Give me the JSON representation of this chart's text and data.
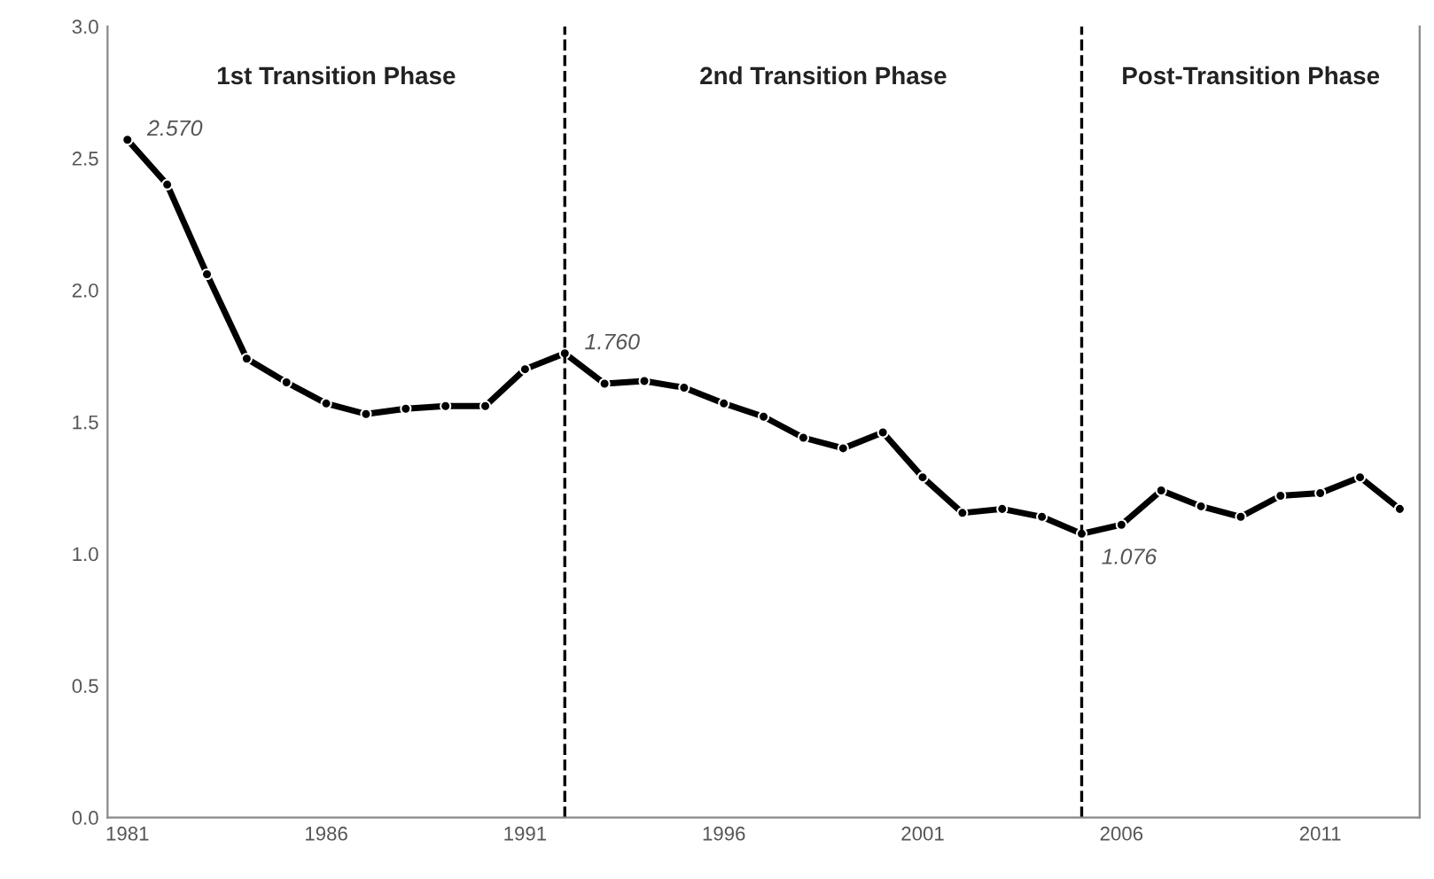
{
  "chart_data": {
    "type": "line",
    "x": [
      1981,
      1982,
      1983,
      1984,
      1985,
      1986,
      1987,
      1988,
      1989,
      1990,
      1991,
      1992,
      1993,
      1994,
      1995,
      1996,
      1997,
      1998,
      1999,
      2000,
      2001,
      2002,
      2003,
      2004,
      2005,
      2006,
      2007,
      2008,
      2009,
      2010,
      2011,
      2012,
      2013
    ],
    "series": [
      {
        "color": "#000000",
        "values": [
          2.57,
          2.4,
          2.06,
          1.74,
          1.65,
          1.57,
          1.53,
          1.55,
          1.56,
          1.56,
          1.7,
          1.76,
          1.645,
          1.655,
          1.63,
          1.57,
          1.52,
          1.44,
          1.4,
          1.46,
          1.29,
          1.155,
          1.17,
          1.14,
          1.076,
          1.11,
          1.24,
          1.18,
          1.14,
          1.22,
          1.23,
          1.29,
          1.17
        ]
      }
    ],
    "xlim": [
      1980.5,
      2013.5
    ],
    "xticks": [
      1981,
      1986,
      1991,
      1996,
      2001,
      2006,
      2011
    ],
    "ylim": [
      0,
      3
    ],
    "yticks": [
      {
        "value": 0,
        "label": "0.0"
      },
      {
        "value": 0.5,
        "label": "0.5"
      },
      {
        "value": 1,
        "label": "1.0"
      },
      {
        "value": 1.5,
        "label": "1.5"
      },
      {
        "value": 2,
        "label": "2.0"
      },
      {
        "value": 2.5,
        "label": "2.5"
      },
      {
        "value": 3,
        "label": "3.0"
      }
    ],
    "ref_lines": [
      {
        "axis": "x",
        "value": 1992,
        "color": "#000000",
        "line_style": "dashed"
      },
      {
        "axis": "x",
        "value": 2005,
        "color": "#000000",
        "line_style": "dashed"
      }
    ],
    "annotations": [
      "1st Transition Phase",
      "2nd Transition Phase",
      "Post-Transition Phase",
      {
        "text": "2.570",
        "x": 1981,
        "y": 2.57
      },
      {
        "text": "1.760",
        "x": 1992,
        "y": 1.76
      },
      {
        "text": "1.076",
        "x": 2005,
        "y": 1.076
      }
    ],
    "marker": "circle",
    "line_style": "solid",
    "grid": false,
    "legend": false
  }
}
